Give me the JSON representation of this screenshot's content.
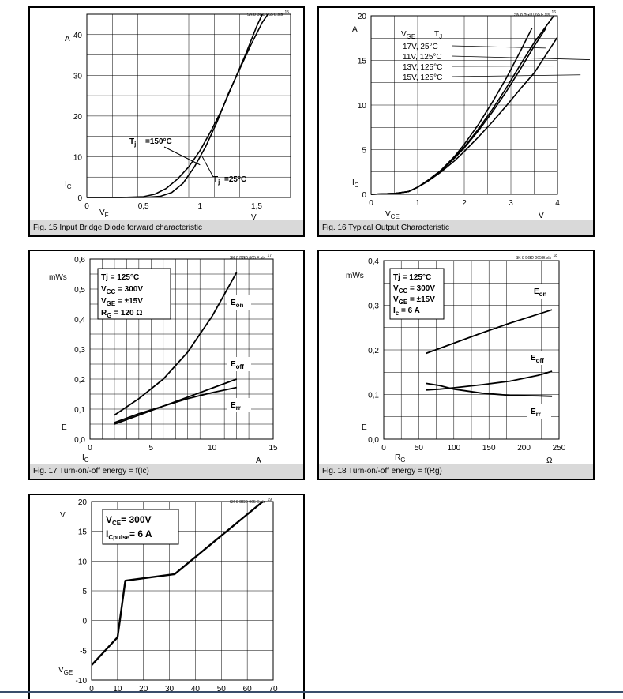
{
  "chart_data": [
    {
      "id": "fig15",
      "type": "line",
      "source": "SK 8 BGD 065 E.xls",
      "figno": "15",
      "caption": "Fig. 15 Input Bridge Diode forward characteristic",
      "xlabel": "V",
      "xlabel_sub": "F",
      "xunit": "V",
      "ylabel": "I",
      "ylabel_sub": "C",
      "yunit": "A",
      "xlim": [
        0,
        1.8
      ],
      "ylim": [
        0,
        45
      ],
      "xticks": [
        {
          "v": 0,
          "t": "0"
        },
        {
          "v": 0.5,
          "t": "0,5"
        },
        {
          "v": 1,
          "t": "1"
        },
        {
          "v": 1.5,
          "t": "1,5"
        }
      ],
      "yticks": [
        {
          "v": 0,
          "t": "0"
        },
        {
          "v": 10,
          "t": "10"
        },
        {
          "v": 20,
          "t": "20"
        },
        {
          "v": 30,
          "t": "30"
        },
        {
          "v": 40,
          "t": "40"
        }
      ],
      "series": [
        {
          "name": "Tj=150°C",
          "x": [
            0,
            0.3,
            0.5,
            0.6,
            0.7,
            0.8,
            0.9,
            1.0,
            1.1,
            1.2,
            1.3,
            1.4,
            1.5,
            1.55
          ],
          "y": [
            0,
            0,
            0.2,
            0.8,
            2.2,
            4.5,
            7.5,
            11.5,
            16.5,
            22,
            28.5,
            35,
            42,
            45
          ]
        },
        {
          "name": "Tj=25°C",
          "x": [
            0,
            0.5,
            0.65,
            0.75,
            0.85,
            0.95,
            1.05,
            1.15,
            1.25,
            1.35,
            1.45,
            1.55,
            1.6
          ],
          "y": [
            0,
            0,
            0.3,
            1.2,
            3.5,
            7.5,
            12.5,
            18.5,
            25.5,
            31.5,
            37.5,
            43,
            45
          ]
        }
      ]
    },
    {
      "id": "fig16",
      "type": "line",
      "source": "SK 8 BGD 065 E.xls",
      "figno": "16",
      "caption": "Fig. 16 Typical Output Characteristic",
      "xlabel": "V",
      "xlabel_sub": "CE",
      "xunit": "V",
      "ylabel": "I",
      "ylabel_sub": "C",
      "yunit": "A",
      "xlim": [
        0,
        4
      ],
      "ylim": [
        0,
        20
      ],
      "xticks": [
        {
          "v": 0,
          "t": "0"
        },
        {
          "v": 1,
          "t": "1"
        },
        {
          "v": 2,
          "t": "2"
        },
        {
          "v": 3,
          "t": "3"
        },
        {
          "v": 4,
          "t": "4"
        }
      ],
      "yticks": [
        {
          "v": 0,
          "t": "0"
        },
        {
          "v": 5,
          "t": "5"
        },
        {
          "v": 10,
          "t": "10"
        },
        {
          "v": 15,
          "t": "15"
        },
        {
          "v": 20,
          "t": "20"
        }
      ],
      "legend_header": [
        "V",
        "GE",
        "T",
        "J"
      ],
      "legend_rows": [
        "17V,   25°C",
        "11V,  125°C",
        "13V,  125°C",
        "15V,  125°C"
      ],
      "series": [
        {
          "name": "17V, 25°C",
          "x": [
            0,
            0.5,
            0.8,
            1.0,
            1.2,
            1.5,
            1.8,
            2.0,
            2.3,
            2.6,
            2.9,
            3.2,
            3.45
          ],
          "y": [
            0,
            0.1,
            0.3,
            0.8,
            1.5,
            2.7,
            4.3,
            5.6,
            7.8,
            10.3,
            13.0,
            16.0,
            18.6
          ]
        },
        {
          "name": "11V, 125°C",
          "x": [
            0,
            0.5,
            0.8,
            1.0,
            1.2,
            1.5,
            1.8,
            2.0,
            2.3,
            2.6,
            2.9,
            3.2,
            3.5,
            4.0
          ],
          "y": [
            0,
            0.1,
            0.3,
            0.8,
            1.4,
            2.5,
            3.8,
            4.8,
            6.4,
            8.1,
            9.9,
            11.8,
            13.6,
            17.6
          ]
        },
        {
          "name": "13V, 125°C",
          "x": [
            0,
            0.5,
            0.8,
            1.0,
            1.2,
            1.5,
            1.8,
            2.0,
            2.3,
            2.6,
            2.9,
            3.2,
            3.5,
            3.75
          ],
          "y": [
            0,
            0.1,
            0.3,
            0.8,
            1.5,
            2.6,
            4.1,
            5.2,
            7.1,
            9.2,
            11.5,
            14.0,
            16.6,
            18.6
          ]
        },
        {
          "name": "15V, 125°C",
          "x": [
            0,
            0.5,
            0.8,
            1.0,
            1.2,
            1.5,
            1.8,
            2.0,
            2.3,
            2.6,
            2.9,
            3.2,
            3.5,
            3.92
          ],
          "y": [
            0,
            0.1,
            0.3,
            0.8,
            1.5,
            2.6,
            4.2,
            5.3,
            7.3,
            9.5,
            11.9,
            14.5,
            17.0,
            20.0
          ]
        }
      ]
    },
    {
      "id": "fig17",
      "type": "line",
      "source": "SK 8 BGD 065 E.xls",
      "figno": "17",
      "caption": "Fig. 17 Turn-on/-off energy = f(Ic)",
      "xlabel": "I",
      "xlabel_sub": "C",
      "xunit": "A",
      "ylabel": "E",
      "yunit": "mWs",
      "xlim": [
        0,
        15
      ],
      "ylim": [
        0,
        0.6
      ],
      "xticks": [
        {
          "v": 0,
          "t": "0"
        },
        {
          "v": 5,
          "t": "5"
        },
        {
          "v": 10,
          "t": "10"
        },
        {
          "v": 15,
          "t": "15"
        }
      ],
      "yticks": [
        {
          "v": 0,
          "t": "0,0"
        },
        {
          "v": 0.1,
          "t": "0,1"
        },
        {
          "v": 0.2,
          "t": "0,2"
        },
        {
          "v": 0.3,
          "t": "0,3"
        },
        {
          "v": 0.4,
          "t": "0,4"
        },
        {
          "v": 0.5,
          "t": "0,5"
        },
        {
          "v": 0.6,
          "t": "0,6"
        }
      ],
      "conditions": [
        "Tj = 125°C",
        "V|CC| = 300V",
        "V|GE| = ±15V",
        "R|G| = 120 Ω"
      ],
      "series": [
        {
          "name": "E|on",
          "x": [
            2,
            4,
            6,
            8,
            10,
            12
          ],
          "y": [
            0.08,
            0.135,
            0.2,
            0.29,
            0.41,
            0.555
          ]
        },
        {
          "name": "E|off",
          "x": [
            2,
            4,
            6,
            8,
            10,
            12
          ],
          "y": [
            0.055,
            0.085,
            0.11,
            0.14,
            0.17,
            0.2
          ]
        },
        {
          "name": "E|rr",
          "x": [
            2,
            4,
            6,
            8,
            10,
            12
          ],
          "y": [
            0.05,
            0.08,
            0.11,
            0.135,
            0.155,
            0.172
          ]
        }
      ]
    },
    {
      "id": "fig18",
      "type": "line",
      "source": "SK 8 BGD 065 E.xls",
      "figno": "18",
      "caption": "Fig. 18 Turn-on/-off energy = f(Rg)",
      "xlabel": "R",
      "xlabel_sub": "G",
      "xunit": "Ω",
      "ylabel": "E",
      "yunit": "mWs",
      "xlim": [
        0,
        250
      ],
      "ylim": [
        0,
        0.4
      ],
      "xticks": [
        {
          "v": 0,
          "t": "0"
        },
        {
          "v": 50,
          "t": "50"
        },
        {
          "v": 100,
          "t": "100"
        },
        {
          "v": 150,
          "t": "150"
        },
        {
          "v": 200,
          "t": "200"
        },
        {
          "v": 250,
          "t": "250"
        }
      ],
      "yticks": [
        {
          "v": 0,
          "t": "0,0"
        },
        {
          "v": 0.1,
          "t": "0,1"
        },
        {
          "v": 0.2,
          "t": "0,2"
        },
        {
          "v": 0.3,
          "t": "0,3"
        },
        {
          "v": 0.4,
          "t": "0,4"
        }
      ],
      "conditions": [
        "Tj = 125°C",
        "V|CC| = 300V",
        "V|GE| = ±15V",
        "I|c| = 6 A"
      ],
      "series": [
        {
          "name": "E|on",
          "x": [
            60,
            100,
            140,
            180,
            220,
            240
          ],
          "y": [
            0.192,
            0.215,
            0.238,
            0.26,
            0.28,
            0.29
          ]
        },
        {
          "name": "E|off",
          "x": [
            60,
            80,
            100,
            140,
            180,
            220,
            240
          ],
          "y": [
            0.11,
            0.112,
            0.115,
            0.122,
            0.13,
            0.143,
            0.152
          ]
        },
        {
          "name": "E|rr",
          "x": [
            60,
            80,
            100,
            140,
            180,
            220,
            240
          ],
          "y": [
            0.125,
            0.12,
            0.112,
            0.103,
            0.098,
            0.097,
            0.096
          ]
        }
      ]
    },
    {
      "id": "fig19",
      "type": "line",
      "source": "SK 8 BGD 065 E.xls",
      "figno": "19",
      "xlabel": "",
      "ylabel": "V",
      "ylabel_sub": "GE",
      "yunit": "V",
      "xlim": [
        0,
        70
      ],
      "ylim": [
        -10,
        20
      ],
      "xticks": [
        {
          "v": 0,
          "t": "0"
        },
        {
          "v": 10,
          "t": "10"
        },
        {
          "v": 20,
          "t": "20"
        },
        {
          "v": 30,
          "t": "30"
        },
        {
          "v": 40,
          "t": "40"
        },
        {
          "v": 50,
          "t": "50"
        },
        {
          "v": 60,
          "t": "60"
        },
        {
          "v": 70,
          "t": "70"
        }
      ],
      "yticks": [
        {
          "v": -10,
          "t": "-10"
        },
        {
          "v": -5,
          "t": "-5"
        },
        {
          "v": 0,
          "t": "0"
        },
        {
          "v": 5,
          "t": "5"
        },
        {
          "v": 10,
          "t": "10"
        },
        {
          "v": 15,
          "t": "15"
        },
        {
          "v": 20,
          "t": "20"
        }
      ],
      "conditions": [
        "V|CE|= 300V",
        "I|Cpulse|= 6 A"
      ],
      "series": [
        {
          "name": "VGE",
          "x": [
            0,
            10,
            13,
            32,
            66
          ],
          "y": [
            -7.5,
            -2.8,
            6.7,
            7.8,
            20
          ]
        }
      ]
    }
  ]
}
